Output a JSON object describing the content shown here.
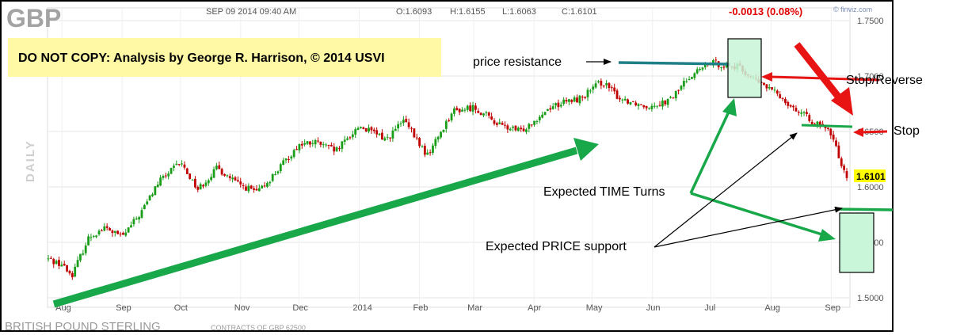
{
  "header": {
    "symbol": "GBP",
    "timestamp": "SEP 09 2014 09:40 AM",
    "open": "O:1.6093",
    "high": "H:1.6155",
    "low": "L:1.6063",
    "close": "C:1.6101",
    "change": "-0.0013 (0.08%)",
    "source": "© finviz.com"
  },
  "watermark": "DAILY",
  "banner": "DO NOT COPY: Analysis by George R. Harrison, © 2014 USVI",
  "footer": {
    "name": "BRITISH POUND STERLING",
    "contracts": "CONTRACTS OF GBP 62500"
  },
  "annotations": {
    "price_resistance": "price resistance",
    "stop_reverse": "Stop/Reverse",
    "stop": "Stop",
    "time_turns": "Expected TIME Turns",
    "price_support": "Expected PRICE support"
  },
  "colors": {
    "up_candle": "#1a9e1a",
    "down_candle": "#c00000",
    "green_arrow": "#18a84a",
    "red_arrow": "#e81414",
    "teal_line": "#1f7f86",
    "box_fill": "#c9f5d8",
    "banner_bg": "#fff9a6",
    "price_tag": "#ffff00"
  },
  "chart_data": {
    "type": "candlestick",
    "title": "GBP",
    "x_ticks": [
      "Aug",
      "Sep",
      "Oct",
      "Nov",
      "Dec",
      "2014",
      "Feb",
      "Mar",
      "Apr",
      "May",
      "Jun",
      "Jul",
      "Aug",
      "Sep"
    ],
    "y_ticks": [
      "1.7500",
      "1.7000",
      "1.6500",
      "1.6000",
      "1.5500",
      "1.5000"
    ],
    "ylim": [
      1.5,
      1.75
    ],
    "last_price": "1.6101",
    "price_path": [
      [
        "2013-07-25",
        1.535
      ],
      [
        "2013-08-01",
        1.53
      ],
      [
        "2013-08-06",
        1.52
      ],
      [
        "2013-08-15",
        1.555
      ],
      [
        "2013-08-23",
        1.563
      ],
      [
        "2013-09-01",
        1.555
      ],
      [
        "2013-09-10",
        1.575
      ],
      [
        "2013-09-20",
        1.605
      ],
      [
        "2013-10-01",
        1.622
      ],
      [
        "2013-10-10",
        1.598
      ],
      [
        "2013-10-20",
        1.617
      ],
      [
        "2013-10-31",
        1.602
      ],
      [
        "2013-11-10",
        1.595
      ],
      [
        "2013-11-20",
        1.615
      ],
      [
        "2013-12-01",
        1.638
      ],
      [
        "2013-12-10",
        1.64
      ],
      [
        "2013-12-20",
        1.632
      ],
      [
        "2014-01-01",
        1.655
      ],
      [
        "2014-01-15",
        1.643
      ],
      [
        "2014-01-24",
        1.66
      ],
      [
        "2014-02-05",
        1.628
      ],
      [
        "2014-02-18",
        1.668
      ],
      [
        "2014-03-01",
        1.672
      ],
      [
        "2014-03-15",
        1.655
      ],
      [
        "2014-03-25",
        1.65
      ],
      [
        "2014-04-10",
        1.673
      ],
      [
        "2014-04-25",
        1.68
      ],
      [
        "2014-05-06",
        1.695
      ],
      [
        "2014-05-15",
        1.68
      ],
      [
        "2014-05-29",
        1.673
      ],
      [
        "2014-06-10",
        1.678
      ],
      [
        "2014-06-20",
        1.7
      ],
      [
        "2014-07-01",
        1.712
      ],
      [
        "2014-07-15",
        1.708
      ],
      [
        "2014-07-25",
        1.695
      ],
      [
        "2014-08-05",
        1.683
      ],
      [
        "2014-08-15",
        1.668
      ],
      [
        "2014-08-25",
        1.656
      ],
      [
        "2014-09-01",
        1.648
      ],
      [
        "2014-09-05",
        1.627
      ],
      [
        "2014-09-09",
        1.61
      ]
    ]
  }
}
